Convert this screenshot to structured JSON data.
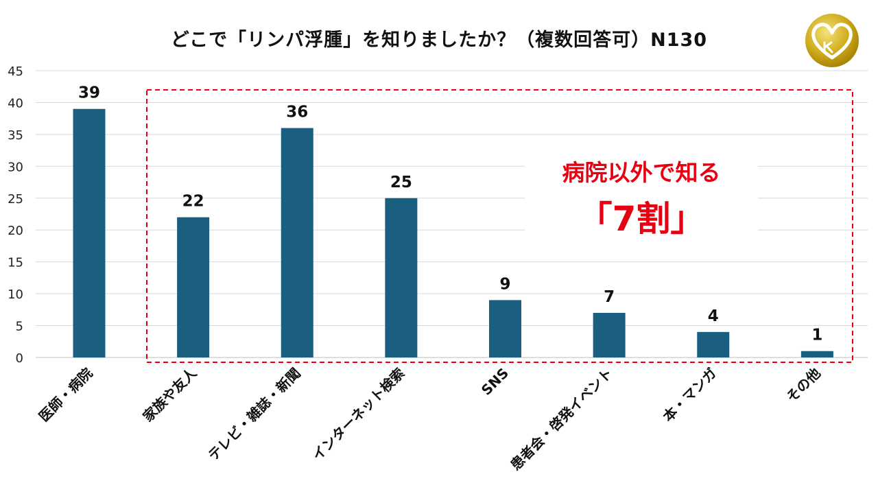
{
  "chart_data": {
    "type": "bar",
    "title": "どこで「リンパ浮腫」を知りましたか？（複数回答可）N130",
    "categories": [
      "医師・病院",
      "家族や友人",
      "テレビ・雑誌・新聞",
      "インターネット検索",
      "SNS",
      "患者会・啓発イベント",
      "本・マンガ",
      "その他"
    ],
    "values": [
      39,
      22,
      36,
      25,
      9,
      7,
      4,
      1
    ],
    "ylim": [
      0,
      45
    ],
    "yticks": [
      0,
      5,
      10,
      15,
      20,
      25,
      30,
      35,
      40,
      45
    ],
    "grid": true,
    "bar_color": "#1a5e80",
    "show_data_labels": true,
    "legend": "none"
  },
  "annotation": {
    "line1": "病院以外で知る",
    "line2": "「7割」",
    "color": "#e60012",
    "box_color": "#e60012"
  },
  "logo": {
    "icon": "gold-heart-gk-logo",
    "color": "#c9a400"
  }
}
